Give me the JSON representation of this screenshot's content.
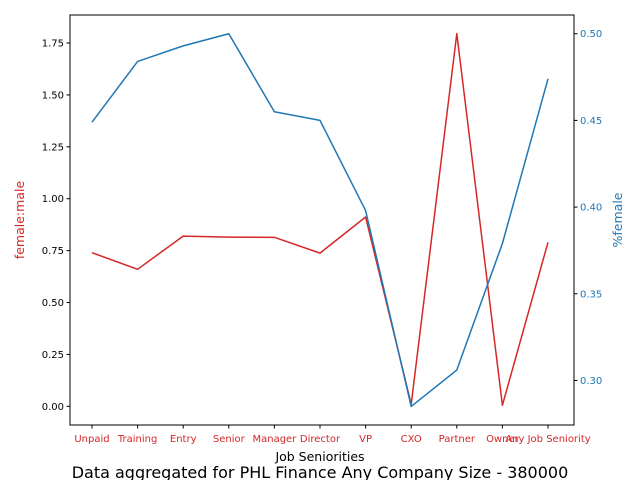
{
  "chart_data": {
    "type": "line",
    "xlabel": "Job Seniorities",
    "categories": [
      "Unpaid",
      "Training",
      "Entry",
      "Senior",
      "Manager",
      "Director",
      "VP",
      "CXO",
      "Partner",
      "Owner",
      "Any Job Seniority"
    ],
    "series": [
      {
        "name": "female:male",
        "axis": "left",
        "color": "#d62728",
        "values": [
          0.74,
          0.66,
          0.82,
          0.815,
          0.814,
          0.738,
          0.912,
          0.01,
          1.795,
          0.005,
          0.79
        ]
      },
      {
        "name": "%female",
        "axis": "right",
        "color": "#1f77b4",
        "values": [
          0.449,
          0.484,
          0.493,
          0.5,
          0.455,
          0.45,
          0.398,
          0.285,
          0.306,
          0.379,
          0.474
        ]
      }
    ],
    "y_left": {
      "label": "female:male",
      "color": "#d62728",
      "ylim": [
        -0.09,
        1.885
      ],
      "ticks": [
        "0.00",
        "0.25",
        "0.50",
        "0.75",
        "1.00",
        "1.25",
        "1.50",
        "1.75"
      ]
    },
    "y_right": {
      "label": "%female",
      "color": "#1f77b4",
      "ylim": [
        0.2743,
        0.5108
      ],
      "ticks": [
        "0.30",
        "0.35",
        "0.40",
        "0.45",
        "0.50"
      ]
    },
    "grid": false,
    "legend": "none",
    "caption": "Data aggregated for PHL Finance Any Company Size - 380000"
  }
}
